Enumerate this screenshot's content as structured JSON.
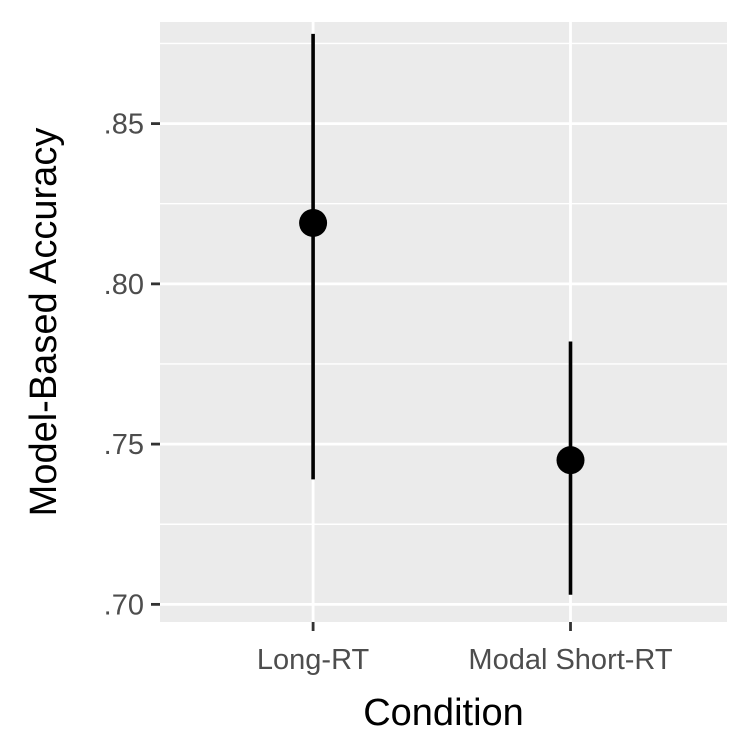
{
  "chart_data": {
    "type": "scatter",
    "xlabel": "Condition",
    "ylabel": "Model-Based Accuracy",
    "categories": [
      "Long-RT",
      "Modal Short-RT"
    ],
    "series": [
      {
        "points": [
          {
            "x": "Long-RT",
            "y": 0.819,
            "ymin": 0.739,
            "ymax": 0.878
          },
          {
            "x": "Modal Short-RT",
            "y": 0.745,
            "ymin": 0.703,
            "ymax": 0.782
          }
        ]
      }
    ],
    "y_ticks": [
      0.7,
      0.75,
      0.8,
      0.85
    ],
    "y_tick_labels": [
      ".70",
      ".75",
      ".80",
      ".85"
    ],
    "ylim": [
      0.6945,
      0.8817
    ],
    "grid": true,
    "panel_background": "#ebebeb",
    "grid_color": "#ffffff",
    "point_color": "#000000"
  }
}
